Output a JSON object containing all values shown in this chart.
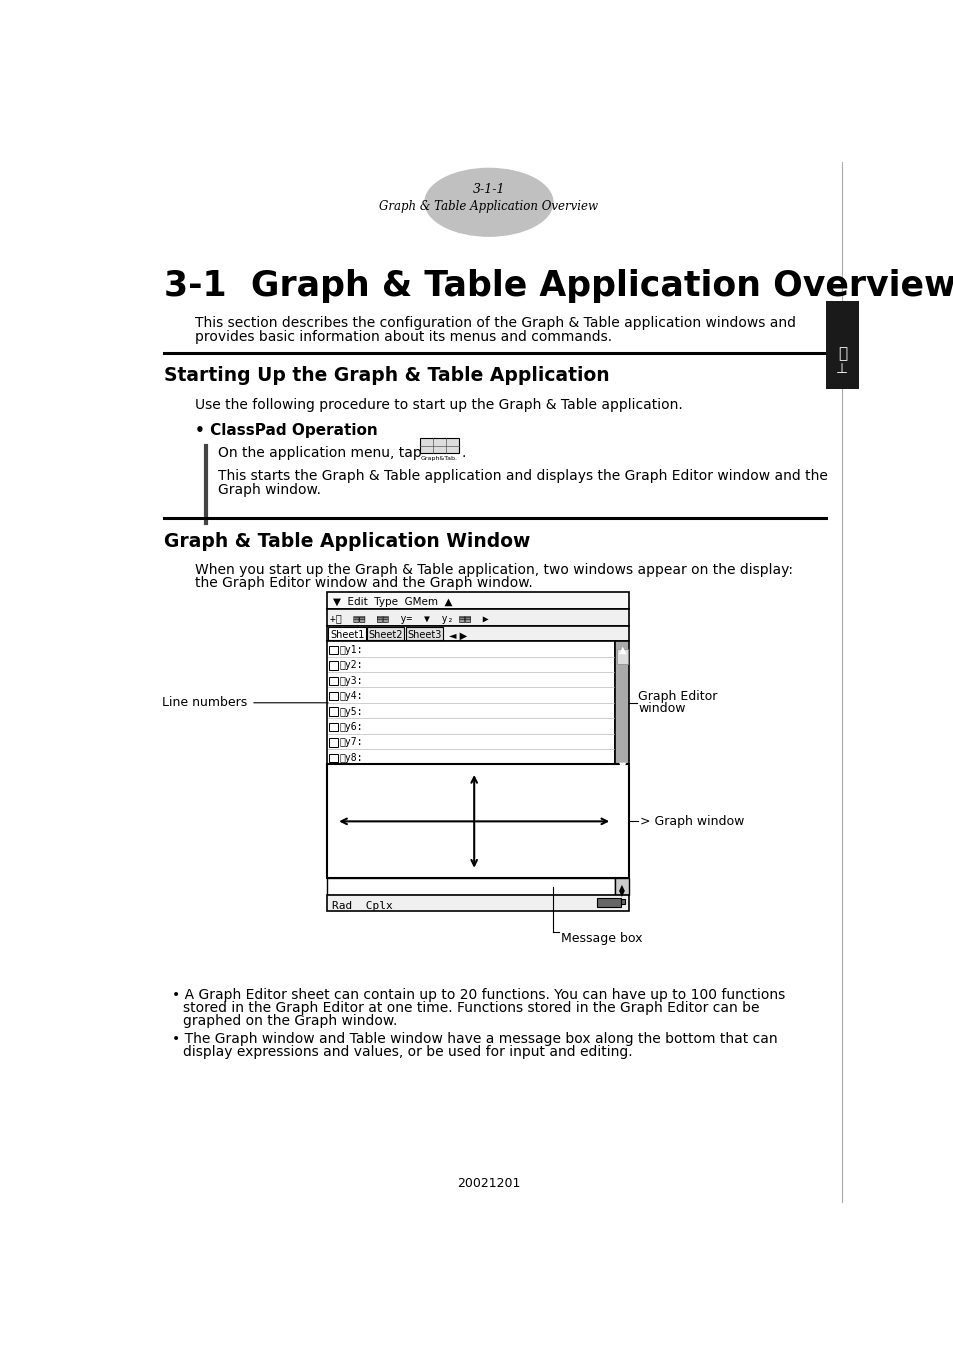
{
  "page_header_number": "3-1-1",
  "page_header_subtitle": "Graph & Table Application Overview",
  "main_title": "3-1  Graph & Table Application Overview",
  "intro_line1": "This section describes the configuration of the Graph & Table application windows and",
  "intro_line2": "provides basic information about its menus and commands.",
  "section1_title": "Starting Up the Graph & Table Application",
  "section1_intro": "Use the following procedure to start up the Graph & Table application.",
  "bullet_classpad": "• ClassPad Operation",
  "classpad_step1a": "On the application menu, tap",
  "classpad_step1b": ".",
  "classpad_step2a": "This starts the Graph & Table application and displays the Graph Editor window and the",
  "classpad_step2b": "Graph window.",
  "section2_title": "Graph & Table Application Window",
  "section2_intro1": "When you start up the Graph & Table application, two windows appear on the display:",
  "section2_intro2": "the Graph Editor window and the Graph window.",
  "label_line_numbers": "Line numbers",
  "label_graph_editor_1": "Graph Editor",
  "label_graph_editor_2": "window",
  "label_graph_window": "Graph window",
  "label_message_box": "Message box",
  "bullet1a": "• A Graph Editor sheet can contain up to 20 functions. You can have up to 100 functions",
  "bullet1b": "stored in the Graph Editor at one time. Functions stored in the Graph Editor can be",
  "bullet1c": "graphed on the Graph window.",
  "bullet2a": "• The Graph window and Table window have a message box along the bottom that can",
  "bullet2b": "display expressions and values, or be used for input and editing.",
  "footer_text": "20021201",
  "bg_color": "#ffffff",
  "text_color": "#000000",
  "ellipse_color": "#c0c0c0",
  "divider_color": "#000000",
  "sidebar_color": "#1a1a1a"
}
